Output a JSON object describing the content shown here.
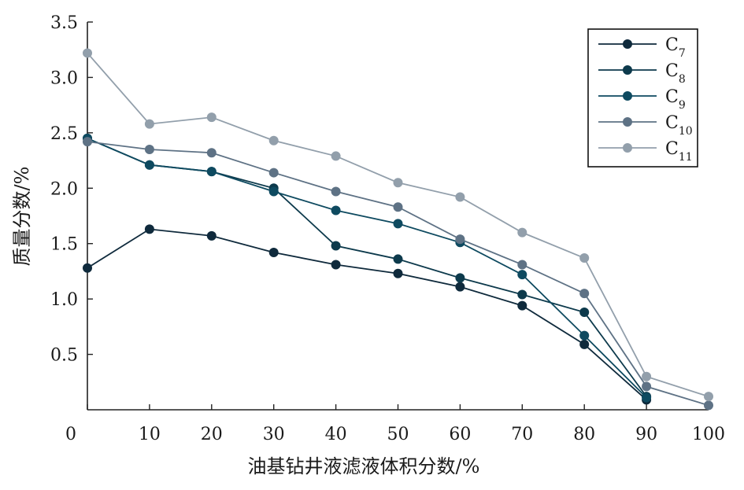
{
  "chart_data": {
    "type": "line",
    "xlabel": "油基钻井液滤液体积分数/%",
    "ylabel": "质量分数/%",
    "xlim": [
      0,
      100
    ],
    "ylim": [
      0,
      3.5
    ],
    "x_ticks": [
      "0",
      "10",
      "20",
      "30",
      "40",
      "50",
      "60",
      "70",
      "80",
      "90",
      "100"
    ],
    "y_ticks": [
      "0.5",
      "1.0",
      "1.5",
      "2.0",
      "2.5",
      "3.0",
      "3.5"
    ],
    "x_tick_values": [
      0,
      10,
      20,
      30,
      40,
      50,
      60,
      70,
      80,
      90,
      100
    ],
    "y_tick_values": [
      0.5,
      1.0,
      1.5,
      2.0,
      2.5,
      3.0,
      3.5
    ],
    "grid": false,
    "legend_position": "top-right",
    "x": [
      0,
      10,
      20,
      30,
      40,
      50,
      60,
      70,
      80,
      90,
      100
    ],
    "series": [
      {
        "name": "C7",
        "base": "C",
        "sub": "7",
        "color": "#0f2a3c",
        "values": [
          1.28,
          1.63,
          1.57,
          1.42,
          1.31,
          1.23,
          1.11,
          0.94,
          0.59,
          0.09,
          null
        ]
      },
      {
        "name": "C8",
        "base": "C",
        "sub": "8",
        "color": "#0d3a4c",
        "values": [
          2.45,
          2.21,
          2.15,
          2.0,
          1.48,
          1.36,
          1.19,
          1.04,
          0.88,
          0.12,
          null
        ]
      },
      {
        "name": "C9",
        "base": "C",
        "sub": "9",
        "color": "#0e4a60",
        "values": [
          2.45,
          2.21,
          2.15,
          1.97,
          1.8,
          1.68,
          1.51,
          1.22,
          0.67,
          0.11,
          null
        ]
      },
      {
        "name": "C10",
        "base": "C",
        "sub": "10",
        "color": "#5e7285",
        "values": [
          2.42,
          2.35,
          2.32,
          2.14,
          1.97,
          1.83,
          1.54,
          1.31,
          1.05,
          0.21,
          0.04
        ]
      },
      {
        "name": "C11",
        "base": "C",
        "sub": "11",
        "color": "#929fab",
        "values": [
          3.22,
          2.58,
          2.64,
          2.43,
          2.29,
          2.05,
          1.92,
          1.6,
          1.37,
          0.3,
          0.12
        ]
      }
    ]
  }
}
